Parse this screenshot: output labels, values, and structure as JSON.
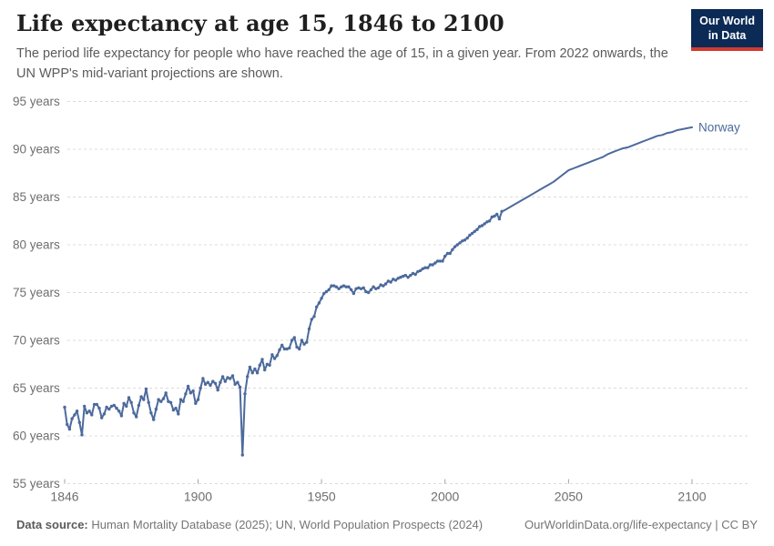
{
  "header": {
    "title": "Life expectancy at age 15, 1846 to 2100",
    "subtitle": "The period life expectancy for people who have reached the age of 15, in a given year. From 2022 onwards, the UN WPP's mid-variant projections are shown.",
    "logo": {
      "line1": "Our World",
      "line2": "in Data"
    }
  },
  "footer": {
    "datasource_label": "Data source:",
    "datasource_text": " Human Mortality Database (2025); UN, World Population Prospects (2024)",
    "credit": "OurWorldinData.org/life-expectancy | CC BY"
  },
  "colors": {
    "series": "#4c6a9c",
    "grid": "#dcdcdc",
    "axis_text": "#6e6e6e",
    "tick_mark": "#a3a3a3",
    "title": "#1f1f1f",
    "subtitle": "#5b5b5b",
    "logo_bg": "#0b2a55",
    "logo_red": "#cf3b32",
    "background": "#ffffff"
  },
  "chart_data": {
    "type": "line",
    "title": "Life expectancy at age 15, 1846 to 2100",
    "xlabel": "",
    "ylabel": "",
    "unit": "years",
    "xlim": [
      1846,
      2100
    ],
    "ylim": [
      55,
      95
    ],
    "grid": "horizontal-dashed",
    "legend_position": "end-of-line",
    "xticks": [
      1846,
      1900,
      1950,
      2000,
      2050,
      2100
    ],
    "yticks": [
      {
        "value": 55,
        "label": "55 years"
      },
      {
        "value": 60,
        "label": "60 years"
      },
      {
        "value": 65,
        "label": "65 years"
      },
      {
        "value": 70,
        "label": "70 years"
      },
      {
        "value": 75,
        "label": "75 years"
      },
      {
        "value": 80,
        "label": "80 years"
      },
      {
        "value": 85,
        "label": "85 years"
      },
      {
        "value": 90,
        "label": "90 years"
      },
      {
        "value": 95,
        "label": "95 years"
      }
    ],
    "series": [
      {
        "name": "Norway",
        "color": "#4c6a9c",
        "markers_until": 2023,
        "projection_from": 2023,
        "points": [
          [
            1846,
            63.0
          ],
          [
            1847,
            61.2
          ],
          [
            1848,
            60.7
          ],
          [
            1849,
            61.8
          ],
          [
            1850,
            62.2
          ],
          [
            1851,
            62.6
          ],
          [
            1852,
            61.4
          ],
          [
            1853,
            60.1
          ],
          [
            1854,
            63.1
          ],
          [
            1855,
            62.4
          ],
          [
            1856,
            62.6
          ],
          [
            1857,
            62.2
          ],
          [
            1858,
            63.3
          ],
          [
            1859,
            63.3
          ],
          [
            1860,
            62.9
          ],
          [
            1861,
            61.9
          ],
          [
            1862,
            62.3
          ],
          [
            1863,
            63.0
          ],
          [
            1864,
            62.8
          ],
          [
            1865,
            63.1
          ],
          [
            1866,
            63.2
          ],
          [
            1867,
            62.9
          ],
          [
            1868,
            62.6
          ],
          [
            1869,
            62.1
          ],
          [
            1870,
            63.4
          ],
          [
            1871,
            63.1
          ],
          [
            1872,
            64.0
          ],
          [
            1873,
            63.5
          ],
          [
            1874,
            62.4
          ],
          [
            1875,
            62.0
          ],
          [
            1876,
            63.2
          ],
          [
            1877,
            64.1
          ],
          [
            1878,
            63.8
          ],
          [
            1879,
            64.9
          ],
          [
            1880,
            63.5
          ],
          [
            1881,
            62.4
          ],
          [
            1882,
            61.7
          ],
          [
            1883,
            62.8
          ],
          [
            1884,
            63.8
          ],
          [
            1885,
            63.6
          ],
          [
            1886,
            63.9
          ],
          [
            1887,
            64.5
          ],
          [
            1888,
            63.6
          ],
          [
            1889,
            63.5
          ],
          [
            1890,
            62.7
          ],
          [
            1891,
            62.9
          ],
          [
            1892,
            62.3
          ],
          [
            1893,
            63.8
          ],
          [
            1894,
            63.6
          ],
          [
            1895,
            64.4
          ],
          [
            1896,
            65.2
          ],
          [
            1897,
            64.5
          ],
          [
            1898,
            64.7
          ],
          [
            1899,
            63.4
          ],
          [
            1900,
            63.8
          ],
          [
            1901,
            65.0
          ],
          [
            1902,
            66.0
          ],
          [
            1903,
            65.4
          ],
          [
            1904,
            65.6
          ],
          [
            1905,
            65.3
          ],
          [
            1906,
            65.7
          ],
          [
            1907,
            65.5
          ],
          [
            1908,
            64.8
          ],
          [
            1909,
            65.6
          ],
          [
            1910,
            66.2
          ],
          [
            1911,
            65.7
          ],
          [
            1912,
            66.1
          ],
          [
            1913,
            66.0
          ],
          [
            1914,
            66.3
          ],
          [
            1915,
            65.4
          ],
          [
            1916,
            65.6
          ],
          [
            1917,
            65.1
          ],
          [
            1918,
            58.0
          ],
          [
            1919,
            64.4
          ],
          [
            1920,
            66.2
          ],
          [
            1921,
            67.2
          ],
          [
            1922,
            66.6
          ],
          [
            1923,
            67.0
          ],
          [
            1924,
            66.6
          ],
          [
            1925,
            67.4
          ],
          [
            1926,
            68.0
          ],
          [
            1927,
            66.9
          ],
          [
            1928,
            67.5
          ],
          [
            1929,
            67.4
          ],
          [
            1930,
            68.5
          ],
          [
            1931,
            68.1
          ],
          [
            1932,
            68.4
          ],
          [
            1933,
            69.0
          ],
          [
            1934,
            69.5
          ],
          [
            1935,
            69.1
          ],
          [
            1936,
            69.1
          ],
          [
            1937,
            69.2
          ],
          [
            1938,
            70.0
          ],
          [
            1939,
            70.3
          ],
          [
            1940,
            69.3
          ],
          [
            1941,
            69.1
          ],
          [
            1942,
            70.0
          ],
          [
            1943,
            69.6
          ],
          [
            1944,
            69.8
          ],
          [
            1945,
            71.2
          ],
          [
            1946,
            72.2
          ],
          [
            1947,
            72.5
          ],
          [
            1948,
            73.5
          ],
          [
            1949,
            73.9
          ],
          [
            1950,
            74.4
          ],
          [
            1951,
            74.9
          ],
          [
            1952,
            75.1
          ],
          [
            1953,
            75.3
          ],
          [
            1954,
            75.7
          ],
          [
            1955,
            75.7
          ],
          [
            1956,
            75.6
          ],
          [
            1957,
            75.4
          ],
          [
            1958,
            75.6
          ],
          [
            1959,
            75.7
          ],
          [
            1960,
            75.6
          ],
          [
            1961,
            75.6
          ],
          [
            1962,
            75.3
          ],
          [
            1963,
            74.9
          ],
          [
            1964,
            75.4
          ],
          [
            1965,
            75.5
          ],
          [
            1966,
            75.4
          ],
          [
            1967,
            75.5
          ],
          [
            1968,
            75.1
          ],
          [
            1969,
            75.0
          ],
          [
            1970,
            75.3
          ],
          [
            1971,
            75.6
          ],
          [
            1972,
            75.4
          ],
          [
            1973,
            75.5
          ],
          [
            1974,
            75.8
          ],
          [
            1975,
            75.7
          ],
          [
            1976,
            75.9
          ],
          [
            1977,
            76.2
          ],
          [
            1978,
            76.1
          ],
          [
            1979,
            76.4
          ],
          [
            1980,
            76.3
          ],
          [
            1981,
            76.5
          ],
          [
            1982,
            76.6
          ],
          [
            1983,
            76.7
          ],
          [
            1984,
            76.8
          ],
          [
            1985,
            76.6
          ],
          [
            1986,
            76.8
          ],
          [
            1987,
            77.0
          ],
          [
            1988,
            76.9
          ],
          [
            1989,
            77.2
          ],
          [
            1990,
            77.3
          ],
          [
            1991,
            77.5
          ],
          [
            1992,
            77.6
          ],
          [
            1993,
            77.6
          ],
          [
            1994,
            77.9
          ],
          [
            1995,
            77.9
          ],
          [
            1996,
            78.1
          ],
          [
            1997,
            78.3
          ],
          [
            1998,
            78.3
          ],
          [
            1999,
            78.3
          ],
          [
            2000,
            78.8
          ],
          [
            2001,
            79.1
          ],
          [
            2002,
            79.1
          ],
          [
            2003,
            79.5
          ],
          [
            2004,
            79.8
          ],
          [
            2005,
            80.0
          ],
          [
            2006,
            80.2
          ],
          [
            2007,
            80.4
          ],
          [
            2008,
            80.5
          ],
          [
            2009,
            80.7
          ],
          [
            2010,
            81.0
          ],
          [
            2011,
            81.2
          ],
          [
            2012,
            81.4
          ],
          [
            2013,
            81.6
          ],
          [
            2014,
            81.9
          ],
          [
            2015,
            82.0
          ],
          [
            2016,
            82.2
          ],
          [
            2017,
            82.4
          ],
          [
            2018,
            82.5
          ],
          [
            2019,
            82.9
          ],
          [
            2020,
            83.0
          ],
          [
            2021,
            83.2
          ],
          [
            2022,
            82.7
          ],
          [
            2023,
            83.5
          ],
          [
            2024,
            83.6
          ],
          [
            2026,
            83.9
          ],
          [
            2028,
            84.2
          ],
          [
            2030,
            84.5
          ],
          [
            2032,
            84.8
          ],
          [
            2034,
            85.1
          ],
          [
            2036,
            85.4
          ],
          [
            2038,
            85.7
          ],
          [
            2040,
            86.0
          ],
          [
            2042,
            86.3
          ],
          [
            2044,
            86.6
          ],
          [
            2046,
            87.0
          ],
          [
            2048,
            87.4
          ],
          [
            2050,
            87.8
          ],
          [
            2052,
            88.0
          ],
          [
            2054,
            88.2
          ],
          [
            2056,
            88.4
          ],
          [
            2058,
            88.6
          ],
          [
            2060,
            88.8
          ],
          [
            2062,
            89.0
          ],
          [
            2064,
            89.2
          ],
          [
            2066,
            89.5
          ],
          [
            2068,
            89.7
          ],
          [
            2070,
            89.9
          ],
          [
            2072,
            90.1
          ],
          [
            2074,
            90.2
          ],
          [
            2076,
            90.4
          ],
          [
            2078,
            90.6
          ],
          [
            2080,
            90.8
          ],
          [
            2082,
            91.0
          ],
          [
            2084,
            91.2
          ],
          [
            2086,
            91.4
          ],
          [
            2088,
            91.5
          ],
          [
            2090,
            91.7
          ],
          [
            2092,
            91.8
          ],
          [
            2094,
            92.0
          ],
          [
            2096,
            92.1
          ],
          [
            2098,
            92.2
          ],
          [
            2100,
            92.3
          ]
        ]
      }
    ]
  }
}
